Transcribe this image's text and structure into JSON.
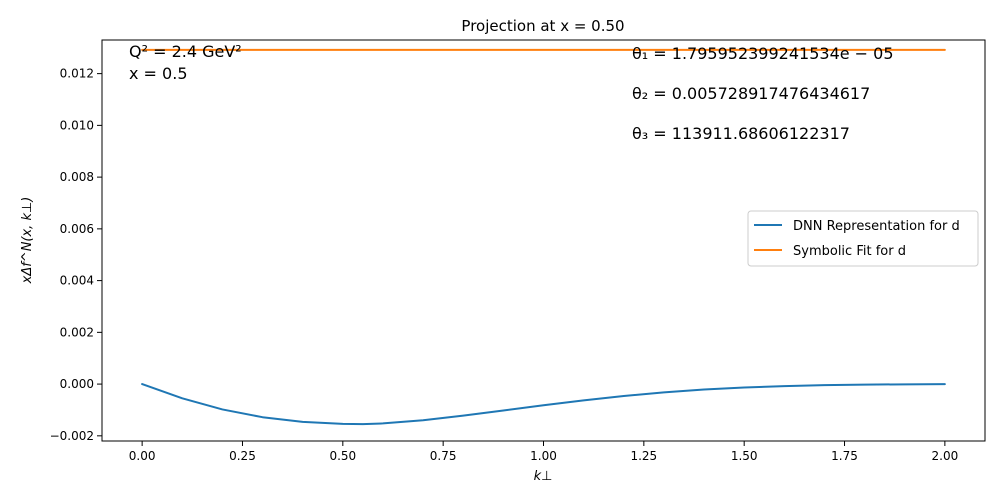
{
  "chart_data": {
    "type": "line",
    "title": "Projection at x = 0.50",
    "xlabel": "k⊥",
    "ylabel": "xΔf^N(x, k⊥)",
    "xlim": [
      -0.1,
      2.1
    ],
    "ylim": [
      -0.0022,
      0.0133
    ],
    "x_ticks": [
      0.0,
      0.25,
      0.5,
      0.75,
      1.0,
      1.25,
      1.5,
      1.75,
      2.0
    ],
    "x_tick_labels": [
      "0.00",
      "0.25",
      "0.50",
      "0.75",
      "1.00",
      "1.25",
      "1.50",
      "1.75",
      "2.00"
    ],
    "y_ticks": [
      -0.002,
      0.0,
      0.002,
      0.004,
      0.006,
      0.008,
      0.01,
      0.012
    ],
    "y_tick_labels": [
      "−0.002",
      "0.000",
      "0.002",
      "0.004",
      "0.006",
      "0.008",
      "0.010",
      "0.012"
    ],
    "grid": false,
    "legend_position": "center-right",
    "series": [
      {
        "name": "DNN Representation for d",
        "color": "#1f77b4",
        "x": [
          0.0,
          0.1,
          0.2,
          0.3,
          0.4,
          0.5,
          0.55,
          0.6,
          0.7,
          0.8,
          0.9,
          1.0,
          1.1,
          1.2,
          1.3,
          1.4,
          1.5,
          1.6,
          1.7,
          1.8,
          1.9,
          2.0
        ],
        "y": [
          0.0,
          -0.00055,
          -0.00098,
          -0.00128,
          -0.00146,
          -0.00154,
          -0.00155,
          -0.00152,
          -0.0014,
          -0.00122,
          -0.00102,
          -0.00082,
          -0.00063,
          -0.00046,
          -0.00032,
          -0.00021,
          -0.00013,
          -8e-05,
          -4e-05,
          -2e-05,
          -1e-05,
          0.0
        ]
      },
      {
        "name": "Symbolic Fit for d",
        "color": "#ff7f0e",
        "x": [
          0.0,
          2.0
        ],
        "y": [
          0.01292,
          0.01292
        ]
      }
    ],
    "annotations": {
      "q2": "Q² = 2.4 GeV²",
      "x_value": "x = 0.5",
      "theta1": "θ₁ = 1.795952399241534e − 05",
      "theta2": "θ₂ = 0.005728917476434617",
      "theta3": "θ₃ = 113911.68606122317"
    }
  }
}
